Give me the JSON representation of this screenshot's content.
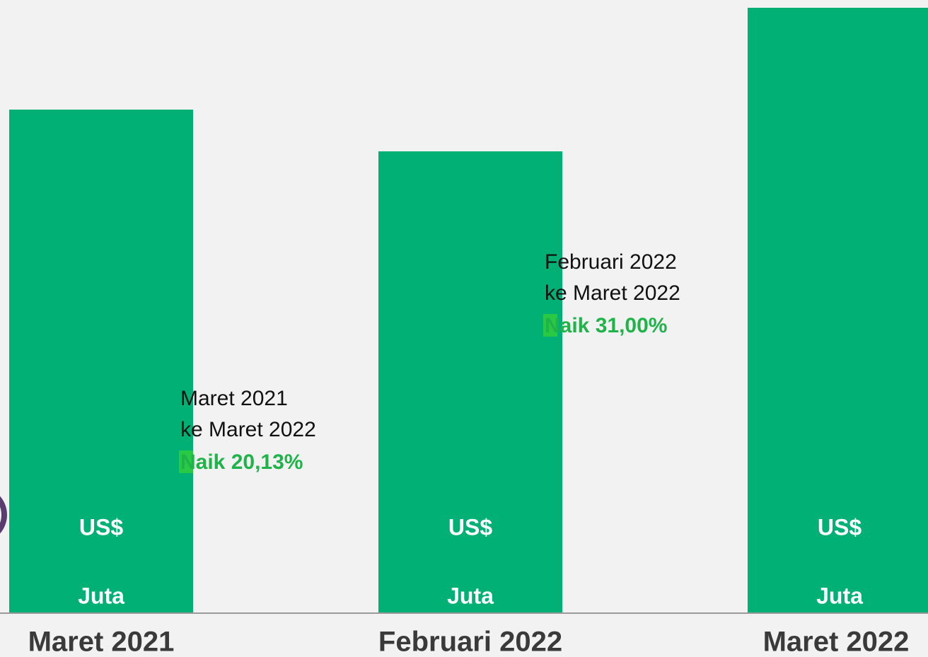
{
  "chart_data": {
    "type": "bar",
    "categories": [
      "Maret 2021",
      "Februari 2022",
      "Maret 2022"
    ],
    "values": [
      711,
      652,
      855
    ],
    "color": "#00b074",
    "ylim": [
      0,
      866
    ],
    "bar_label_top": "US$",
    "bar_label_bottom": "Juta",
    "annotations": [
      {
        "lines": [
          "Maret 2021",
          "ke Maret 2022"
        ],
        "highlight": "Naik 20,13%"
      },
      {
        "lines": [
          "Februari 2022",
          "ke Maret 2022"
        ],
        "highlight": "Naik 31,00%"
      }
    ]
  }
}
